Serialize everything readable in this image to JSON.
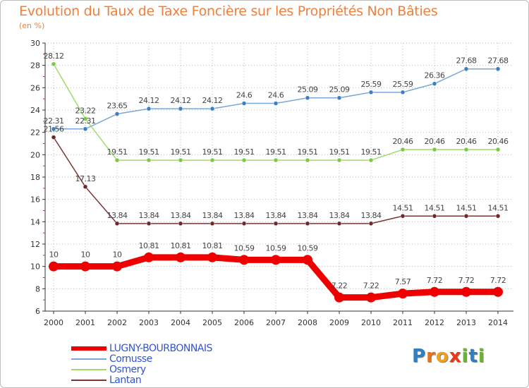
{
  "chart_data": {
    "type": "line",
    "title": "Evolution du Taux de Taxe Foncière sur les Propriétés Non Bâties",
    "subtitle": "(en %)",
    "xlabel": "",
    "ylabel": "(en %)",
    "categories": [
      "2000",
      "2001",
      "2002",
      "2003",
      "2004",
      "2005",
      "2006",
      "2007",
      "2008",
      "2009",
      "2010",
      "2011",
      "2012",
      "2013",
      "2014"
    ],
    "ylim": [
      6,
      30
    ],
    "yticks": [
      "6",
      "8",
      "10",
      "12",
      "14",
      "16",
      "18",
      "20",
      "22",
      "24",
      "26",
      "28",
      "30"
    ],
    "legend_position": "bottom-left",
    "series": [
      {
        "name": "Cornusse",
        "color": "#7ba7d6",
        "marker": "#3c7fc0",
        "width": "thin",
        "values": [
          22.31,
          22.31,
          23.65,
          24.12,
          24.12,
          24.12,
          24.6,
          24.6,
          25.09,
          25.09,
          25.59,
          25.59,
          26.36,
          27.68,
          27.68
        ],
        "labels": [
          "22.31",
          "22.31",
          "23.65",
          "24.12",
          "24.12",
          "24.12",
          "24.6",
          "24.6",
          "25.09",
          "25.09",
          "25.59",
          "25.59",
          "26.36",
          "27.68",
          "27.68"
        ]
      },
      {
        "name": "Osmery",
        "color": "#9edc6a",
        "marker": "#7ac943",
        "width": "thin",
        "values": [
          28.12,
          23.22,
          19.51,
          19.51,
          19.51,
          19.51,
          19.51,
          19.51,
          19.51,
          19.51,
          19.51,
          20.46,
          20.46,
          20.46,
          20.46
        ],
        "labels": [
          "28.12",
          "23.22",
          "19.51",
          "19.51",
          "19.51",
          "19.51",
          "19.51",
          "19.51",
          "19.51",
          "19.51",
          "19.51",
          "20.46",
          "20.46",
          "20.46",
          "20.46"
        ]
      },
      {
        "name": "Lantan",
        "color": "#7a3535",
        "marker": "#6b2a2a",
        "width": "thin",
        "values": [
          21.56,
          17.13,
          13.84,
          13.84,
          13.84,
          13.84,
          13.84,
          13.84,
          13.84,
          13.84,
          13.84,
          14.51,
          14.51,
          14.51,
          14.51
        ],
        "labels": [
          "21.56",
          "17.13",
          "13.84",
          "13.84",
          "13.84",
          "13.84",
          "13.84",
          "13.84",
          "13.84",
          "13.84",
          "13.84",
          "14.51",
          "14.51",
          "14.51",
          "14.51"
        ]
      },
      {
        "name": "LUGNY-BOURBONNAIS",
        "color": "#ee0000",
        "marker": "#ee0000",
        "width": "thick",
        "values": [
          10,
          10,
          10,
          10.81,
          10.81,
          10.81,
          10.59,
          10.59,
          10.59,
          7.22,
          7.22,
          7.57,
          7.72,
          7.72,
          7.72
        ],
        "labels": [
          "10",
          "10",
          "10",
          "10.81",
          "10.81",
          "10.81",
          "10.59",
          "10.59",
          "10.59",
          "7.22",
          "7.22",
          "7.57",
          "7.72",
          "7.72",
          "7.72"
        ]
      }
    ]
  },
  "legend": {
    "items": [
      {
        "label": "LUGNY-BOURBONNAIS",
        "color": "#ee0000"
      },
      {
        "label": "Cornusse",
        "color": "#7ba7d6"
      },
      {
        "label": "Osmery",
        "color": "#9edc6a"
      },
      {
        "label": "Lantan",
        "color": "#7a3535"
      }
    ]
  },
  "logo": {
    "letters": [
      "P",
      "r",
      "o",
      "x",
      "i",
      "t",
      "i"
    ],
    "colors": [
      "#2f7fc1",
      "#e8731a",
      "#f0a01a",
      "#e83a1a",
      "#6ab52d",
      "#2f7fc1",
      "#6ab52d"
    ]
  }
}
